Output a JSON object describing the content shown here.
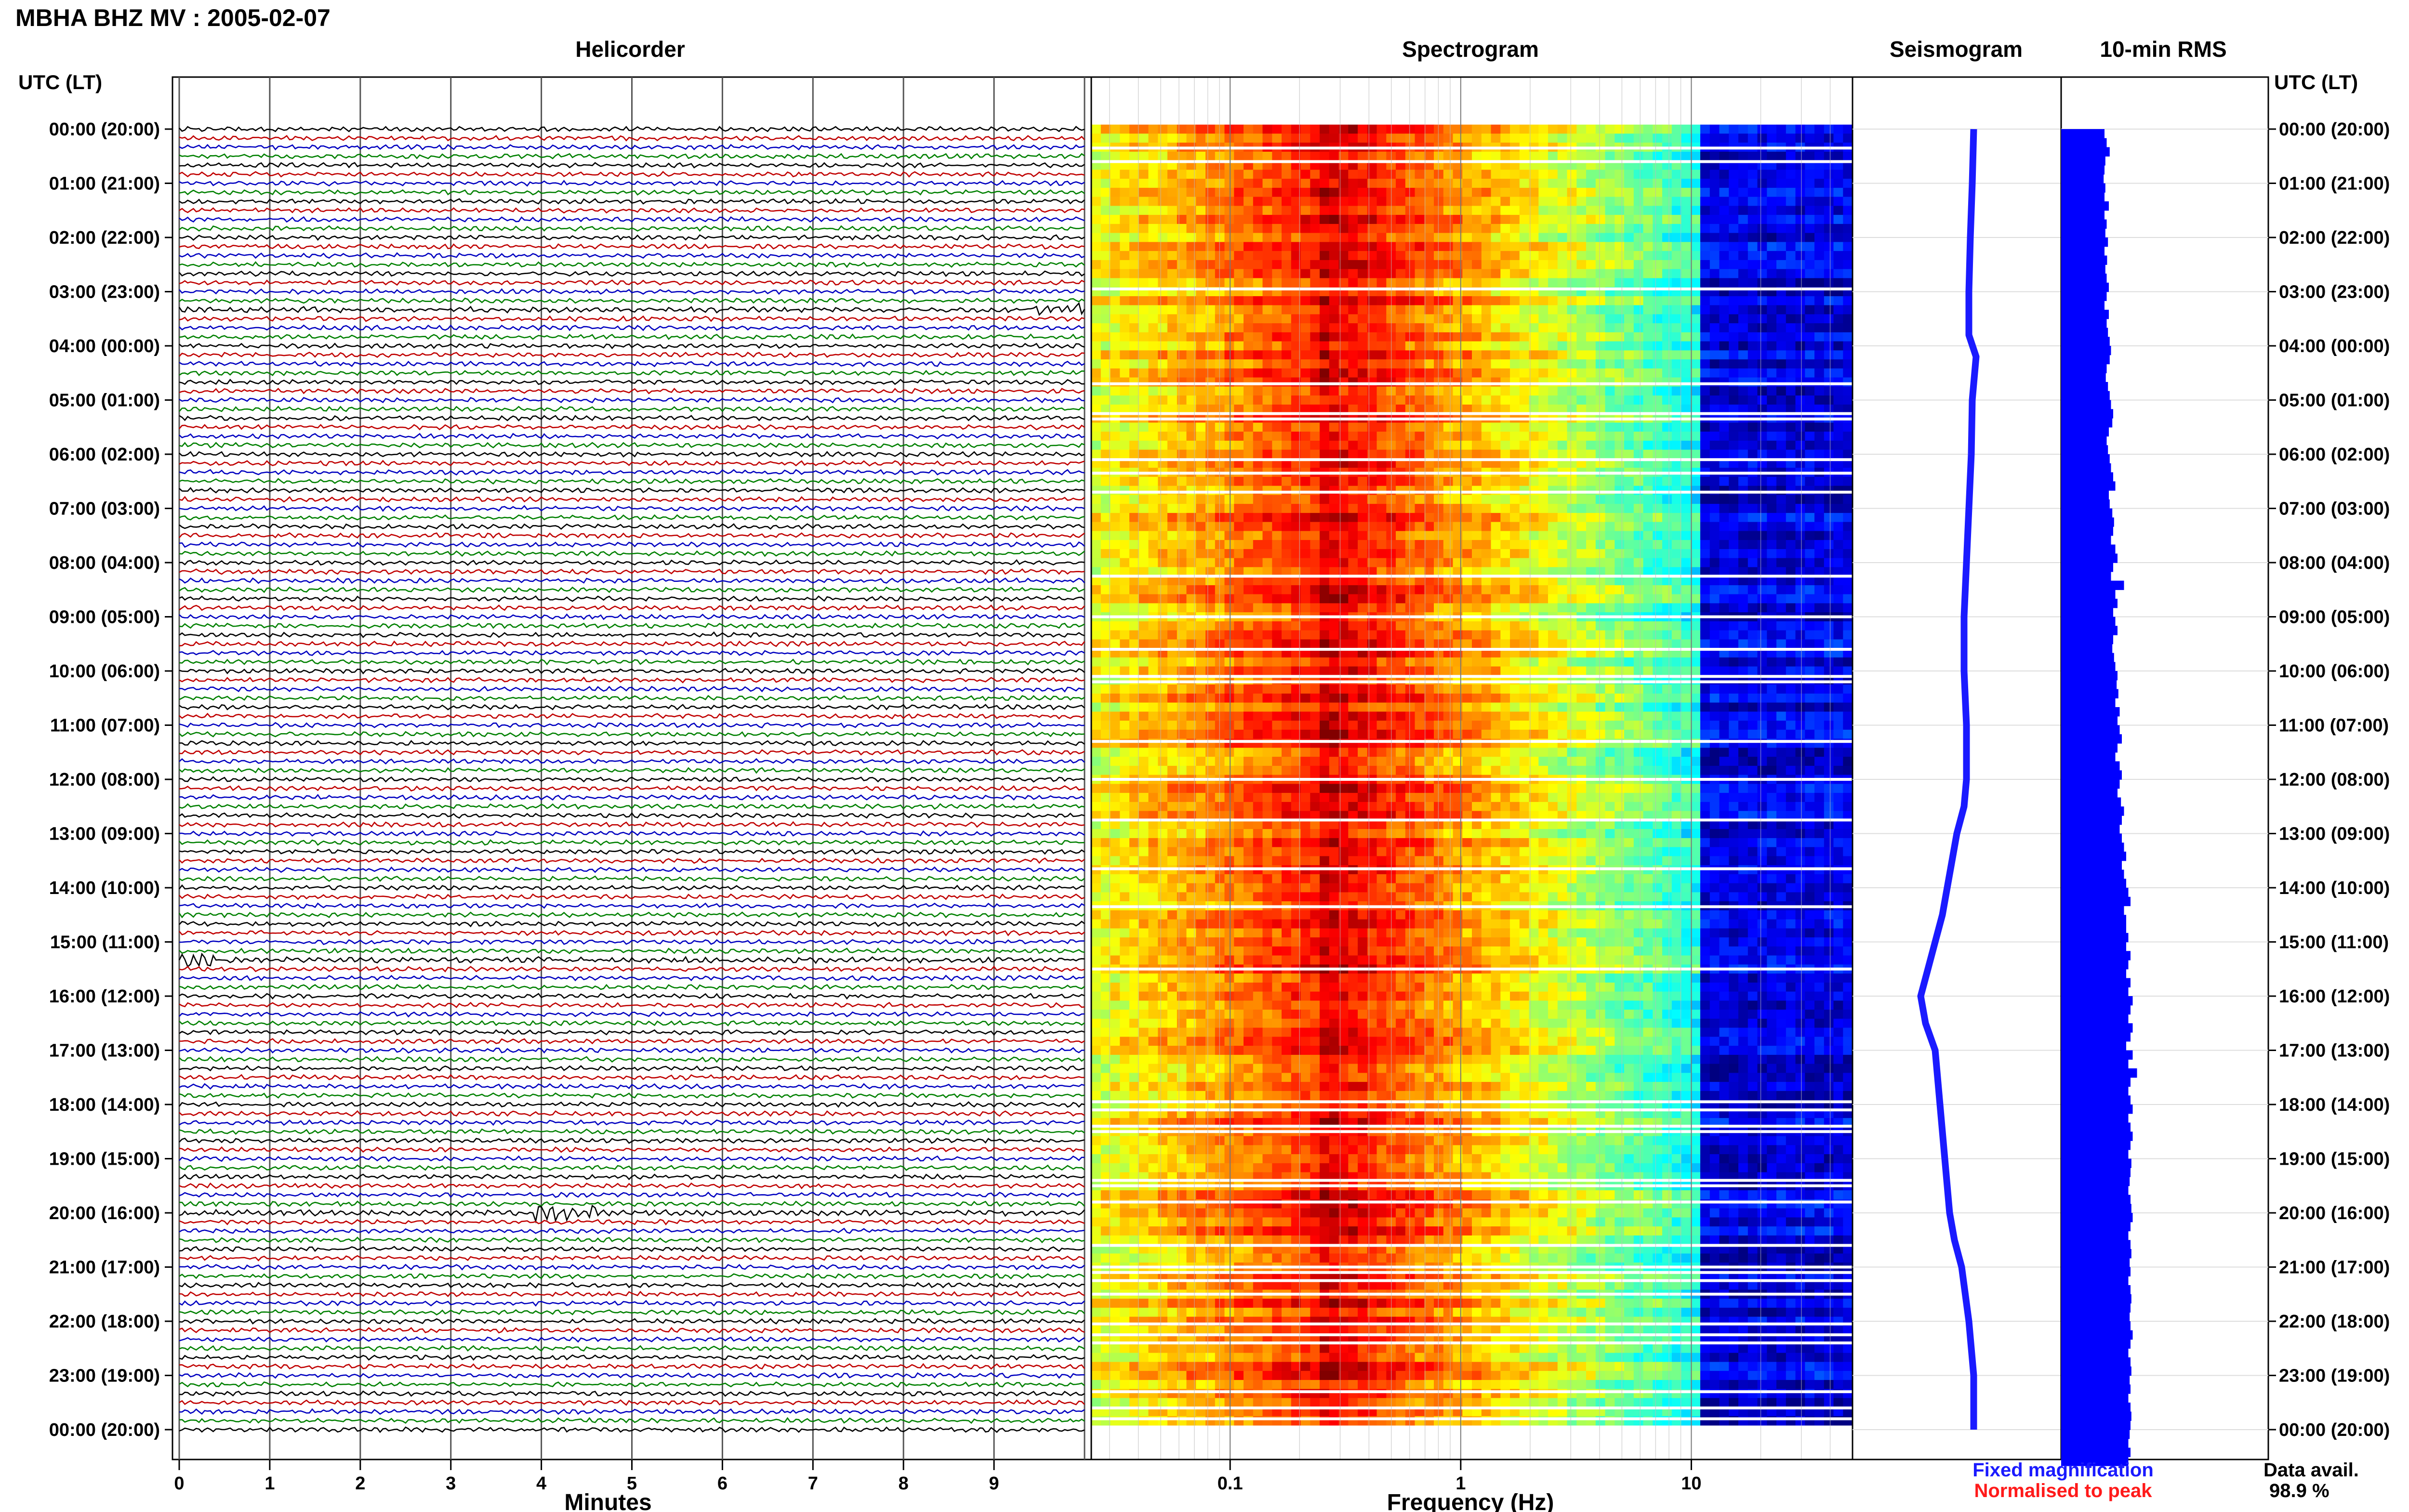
{
  "header": {
    "station_title": "MBHA BHZ MV : 2005-02-07",
    "utc_lt_left": "UTC (LT)",
    "utc_lt_right": "UTC (LT)"
  },
  "panels": {
    "helicorder": "Helicorder",
    "spectrogram": "Spectrogram",
    "seismogram": "Seismogram",
    "rms": "10-min RMS"
  },
  "time_ticks": [
    "00:00 (20:00)",
    "01:00 (21:00)",
    "02:00 (22:00)",
    "03:00 (23:00)",
    "04:00 (00:00)",
    "05:00 (01:00)",
    "06:00 (02:00)",
    "07:00 (03:00)",
    "08:00 (04:00)",
    "09:00 (05:00)",
    "10:00 (06:00)",
    "11:00 (07:00)",
    "12:00 (08:00)",
    "13:00 (09:00)",
    "14:00 (10:00)",
    "15:00 (11:00)",
    "16:00 (12:00)",
    "17:00 (13:00)",
    "18:00 (14:00)",
    "19:00 (15:00)",
    "20:00 (16:00)",
    "21:00 (17:00)",
    "22:00 (18:00)",
    "23:00 (19:00)",
    "00:00 (20:00)"
  ],
  "footer": {
    "fixed_magnification": "Fixed magnification",
    "normalised_to_peak": "Normalised to peak",
    "data_avail_label": "Data avail.",
    "data_avail_value": "98.9 %"
  },
  "colors": {
    "fixed_magnification": "#1a1aff",
    "normalised_to_peak": "#ff1a1a",
    "trace_colors": [
      "#000000",
      "#c00000",
      "#0000c0",
      "#008000"
    ],
    "rms_bar": "#0000ff",
    "spectrogram_low": "#000090",
    "spectrogram_high": "#ffff00"
  },
  "chart_data": [
    {
      "type": "line",
      "title": "Helicorder",
      "xlabel": "Minutes",
      "xlim": [
        0,
        10
      ],
      "x_ticks": [
        "0",
        "1",
        "2",
        "3",
        "4",
        "5",
        "6",
        "7",
        "8",
        "9"
      ],
      "traces_per_hour": 6,
      "trace_colors_cycle": [
        "black",
        "red",
        "blue",
        "green"
      ],
      "events": [
        {
          "hour": 3.3,
          "minute_start": 9.4,
          "minute_end": 10.0
        },
        {
          "hour": 20.0,
          "minute_start": 3.9,
          "minute_end": 4.6
        },
        {
          "hour": 15.3,
          "minute_start": 0.0,
          "minute_end": 0.4
        }
      ]
    },
    {
      "type": "heatmap",
      "title": "Spectrogram",
      "xlabel": "Frequency (Hz)",
      "x_scale": "log",
      "xlim": [
        0.025,
        50
      ],
      "x_ticks": [
        "0.1",
        "1",
        "10"
      ],
      "colormap": "jet",
      "peak_band_hz": [
        0.15,
        0.35
      ],
      "data_gaps_utc_hours": [
        0.35,
        0.6,
        2.95,
        4.7,
        5.25,
        5.35,
        6.1,
        6.35,
        6.7,
        8.25,
        9.0,
        9.6,
        10.1,
        10.2,
        11.3,
        12.0,
        12.75,
        13.65,
        14.35,
        15.5,
        17.95,
        18.1,
        18.4,
        18.5,
        19.4,
        19.5,
        19.8,
        20.6,
        21.0,
        21.1,
        21.25,
        21.5,
        22.05,
        22.25,
        22.4,
        23.3,
        23.6,
        23.8
      ]
    },
    {
      "type": "line",
      "title": "Seismogram",
      "series": [
        {
          "name": "",
          "x_utc_hours": [
            0,
            1,
            2,
            3,
            3.8,
            4.2,
            5,
            6,
            7,
            8,
            9,
            10,
            11,
            12,
            12.5,
            13,
            13.5,
            14,
            14.5,
            15,
            15.5,
            16,
            16.5,
            17,
            17.5,
            18,
            19,
            20,
            20.5,
            21,
            22,
            23,
            24
          ],
          "values": [
            0.15,
            0.12,
            0.08,
            0.05,
            0.05,
            0.2,
            0.12,
            0.1,
            0.05,
            0.0,
            -0.05,
            -0.05,
            0.0,
            0.0,
            -0.05,
            -0.2,
            -0.3,
            -0.4,
            -0.5,
            -0.65,
            -0.8,
            -0.95,
            -0.85,
            -0.65,
            -0.6,
            -0.55,
            -0.45,
            -0.35,
            -0.25,
            -0.1,
            0.05,
            0.15,
            0.15
          ]
        }
      ]
    },
    {
      "type": "bar",
      "title": "10-min RMS",
      "bins_per_hour": 6,
      "values": [
        1.0,
        1.05,
        1.12,
        1.02,
        1.0,
        0.98,
        1.02,
        1.0,
        1.1,
        1.0,
        1.05,
        1.02,
        1.08,
        1.0,
        1.06,
        1.02,
        1.05,
        1.1,
        1.05,
        1.0,
        1.1,
        1.05,
        1.08,
        1.12,
        1.15,
        1.12,
        1.05,
        1.03,
        1.08,
        1.12,
        1.15,
        1.2,
        1.18,
        1.1,
        1.05,
        1.08,
        1.12,
        1.15,
        1.2,
        1.25,
        1.1,
        1.12,
        1.18,
        1.22,
        1.2,
        1.15,
        1.25,
        1.3,
        1.2,
        1.15,
        1.45,
        1.25,
        1.3,
        1.2,
        1.25,
        1.3,
        1.2,
        1.18,
        1.22,
        1.25,
        1.3,
        1.28,
        1.32,
        1.25,
        1.35,
        1.3,
        1.35,
        1.4,
        1.3,
        1.25,
        1.35,
        1.4,
        1.35,
        1.3,
        1.38,
        1.45,
        1.4,
        1.35,
        1.4,
        1.45,
        1.5,
        1.4,
        1.45,
        1.5,
        1.55,
        1.6,
        1.45,
        1.5,
        1.5,
        1.55,
        1.5,
        1.6,
        1.55,
        1.5,
        1.6,
        1.55,
        1.65,
        1.6,
        1.55,
        1.65,
        1.6,
        1.5,
        1.65,
        1.55,
        1.75,
        1.6,
        1.55,
        1.6,
        1.65,
        1.55,
        1.6,
        1.65,
        1.6,
        1.55,
        1.62,
        1.6,
        1.58,
        1.55,
        1.6,
        1.62,
        1.65,
        1.6,
        1.55,
        1.6,
        1.62,
        1.58,
        1.6,
        1.55,
        1.6,
        1.62,
        1.6,
        1.58,
        1.6,
        1.65,
        1.6,
        1.55,
        1.6,
        1.62,
        1.58,
        1.6,
        1.55,
        1.6,
        1.62,
        1.6,
        1.58,
        1.55,
        1.6,
        1.55
      ]
    }
  ]
}
